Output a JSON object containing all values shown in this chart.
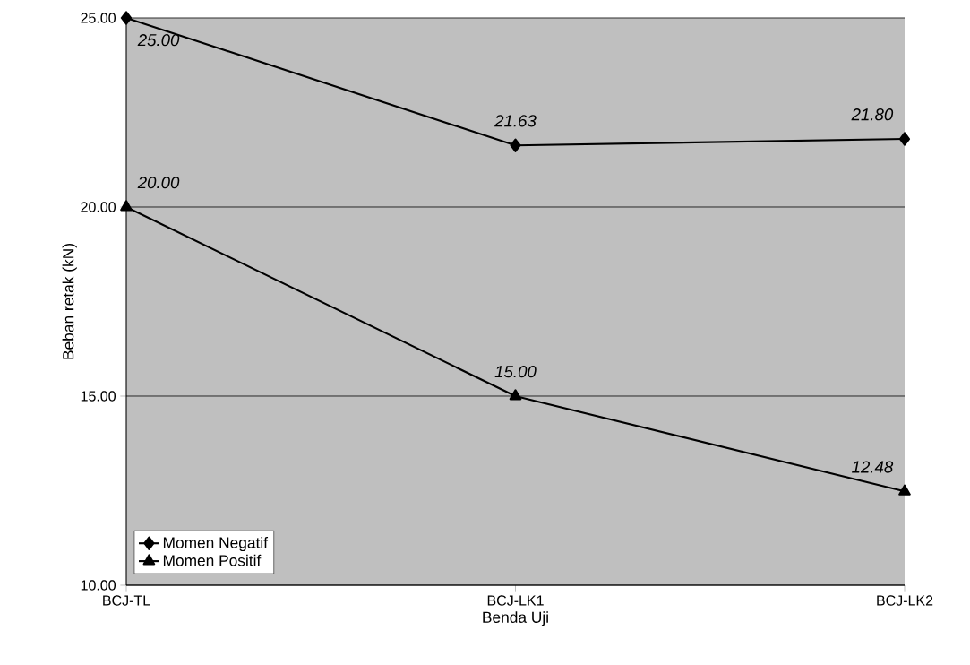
{
  "chart_data": {
    "type": "line",
    "xlabel": "Benda Uji",
    "ylabel": "Beban retak (kN)",
    "categories": [
      "BCJ-TL",
      "BCJ-LK1",
      "BCJ-LK2"
    ],
    "series": [
      {
        "name": "Momen Negatif",
        "color": "#000000",
        "marker": "diamond",
        "values": [
          25.0,
          21.63,
          21.8
        ],
        "value_labels": [
          "25.00",
          "21.63",
          "21.80"
        ]
      },
      {
        "name": "Momen Positif",
        "color": "#000000",
        "marker": "triangle",
        "values": [
          20.0,
          15.0,
          12.48
        ],
        "value_labels": [
          "20.00",
          "15.00",
          "12.48"
        ]
      }
    ],
    "ylim": [
      10,
      25
    ],
    "yticks": [
      {
        "value": 10,
        "label": "10.00"
      },
      {
        "value": 15,
        "label": "15.00"
      },
      {
        "value": 20,
        "label": "20.00"
      },
      {
        "value": 25,
        "label": "25.00"
      }
    ],
    "grid": "y",
    "legend": "bottom left",
    "line_style": "solid"
  }
}
